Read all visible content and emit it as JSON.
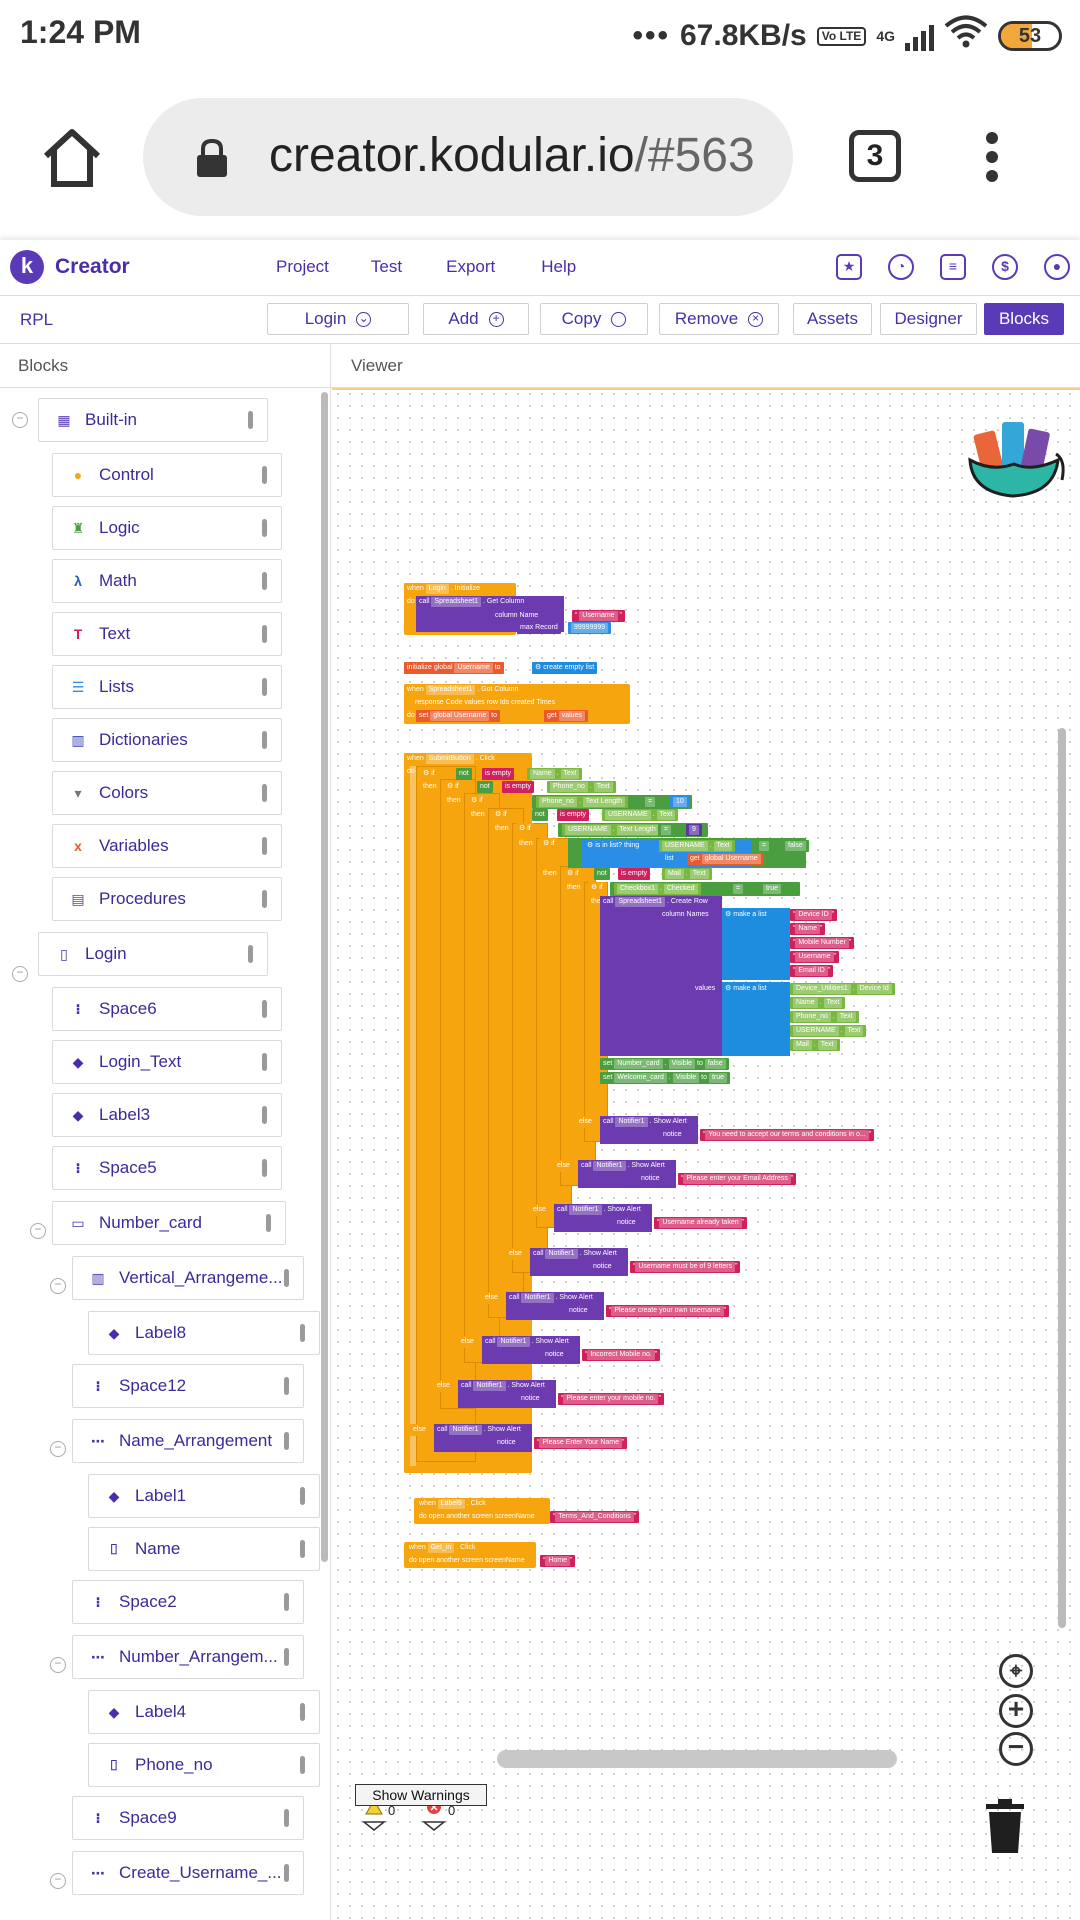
{
  "status_bar": {
    "time": "1:24 PM",
    "network_speed": "67.8KB/s",
    "volte": "Vo LTE",
    "net_type": "4G",
    "battery": "53",
    "battery_level": 0.53
  },
  "browser": {
    "url_host": "creator.kodular.io",
    "url_path": "/#563",
    "tab_count": "3"
  },
  "app": {
    "brand": "Creator",
    "logo_letter": "k",
    "menu": [
      "Project",
      "Test",
      "Export",
      "Help"
    ],
    "header_icons": [
      "folder-star-icon",
      "palette-icon",
      "catalog-icon",
      "dollar-icon",
      "account-icon"
    ]
  },
  "toolbar": {
    "project_name": "RPL",
    "buttons": {
      "screen": "Login",
      "add": "Add",
      "copy": "Copy",
      "remove": "Remove",
      "assets": "Assets",
      "designer": "Designer",
      "blocks": "Blocks"
    }
  },
  "panels": {
    "blocks_title": "Blocks",
    "viewer_title": "Viewer"
  },
  "tree": [
    {
      "label": "Built-in",
      "icon": "builtin-icon",
      "color": "#5b3ab8"
    },
    {
      "label": "Control",
      "icon": "control-icon",
      "color": "#f7a50e"
    },
    {
      "label": "Logic",
      "icon": "logic-icon",
      "color": "#4a9e3f"
    },
    {
      "label": "Math",
      "icon": "math-icon",
      "color": "#2a5bbf"
    },
    {
      "label": "Text",
      "icon": "text-icon",
      "color": "#d0215e"
    },
    {
      "label": "Lists",
      "icon": "lists-icon",
      "color": "#2a8ee6"
    },
    {
      "label": "Dictionaries",
      "icon": "dictionaries-icon",
      "color": "#2d3ab0"
    },
    {
      "label": "Colors",
      "icon": "colors-icon",
      "color": "#777777"
    },
    {
      "label": "Variables",
      "icon": "variables-icon",
      "color": "#ea5a2c"
    },
    {
      "label": "Procedures",
      "icon": "procedures-icon",
      "color": "#6c3bb0"
    },
    {
      "label": "Login",
      "icon": "phone-icon",
      "color": "#4a2ea8"
    },
    {
      "label": "Space6",
      "icon": "space-icon",
      "color": "#4a2ea8"
    },
    {
      "label": "Login_Text",
      "icon": "label-icon",
      "color": "#4a2ea8"
    },
    {
      "label": "Label3",
      "icon": "label-icon",
      "color": "#4a2ea8"
    },
    {
      "label": "Space5",
      "icon": "space-icon",
      "color": "#4a2ea8"
    },
    {
      "label": "Number_card",
      "icon": "card-icon",
      "color": "#4a2ea8"
    },
    {
      "label": "Vertical_Arrangeme...",
      "icon": "vertical-arrangement-icon",
      "color": "#4a2ea8"
    },
    {
      "label": "Label8",
      "icon": "label-icon",
      "color": "#4a2ea8"
    },
    {
      "label": "Space12",
      "icon": "space-icon",
      "color": "#4a2ea8"
    },
    {
      "label": "Name_Arrangement",
      "icon": "horizontal-arrangement-icon",
      "color": "#4a2ea8"
    },
    {
      "label": "Label1",
      "icon": "label-icon",
      "color": "#4a2ea8"
    },
    {
      "label": "Name",
      "icon": "textbox-icon",
      "color": "#4a2ea8"
    },
    {
      "label": "Space2",
      "icon": "space-icon",
      "color": "#4a2ea8"
    },
    {
      "label": "Number_Arrangem...",
      "icon": "horizontal-arrangement-icon",
      "color": "#4a2ea8"
    },
    {
      "label": "Label4",
      "icon": "label-icon",
      "color": "#4a2ea8"
    },
    {
      "label": "Phone_no",
      "icon": "textbox-icon",
      "color": "#4a2ea8"
    },
    {
      "label": "Space9",
      "icon": "space-icon",
      "color": "#4a2ea8"
    },
    {
      "label": "Create_Username_...",
      "icon": "horizontal-arrangement-icon",
      "color": "#4a2ea8"
    }
  ],
  "blocks": {
    "init_when": "when",
    "init_comp": "Login",
    "init_event": "Initialize",
    "do": "do",
    "call": "call",
    "sheet": "Spreadsheet1",
    "get_column": "Get Column",
    "column_name": "column Name",
    "max_record": "max Record",
    "username_str": "Username",
    "max_record_val": "99999999",
    "init_global": "initialize global",
    "global_name": "Username",
    "to": "to",
    "create_empty_list": "create empty list",
    "got_when": "when",
    "got_comp": "Spreadsheet1",
    "got_event": "Got Column",
    "got_params": "response Code   values   row Ids   created Times",
    "set": "set",
    "global_username": "global Username",
    "get": "get",
    "values": "values",
    "submit_when": "when",
    "submit_comp": "SubmitButton",
    "submit_event": "Click",
    "if": "if",
    "then": "then",
    "else": "else",
    "not": "not",
    "is_empty": "is empty",
    "name": "Name",
    "text": "Text",
    "phone_no": "Phone_no",
    "text_length": "Text Length",
    "eq": "=",
    "ten": "10",
    "nine": "9",
    "username_c": "USERNAME",
    "is_in_list": "is in list? thing",
    "list": "list",
    "false": "false",
    "true": "true",
    "mail": "Mail",
    "checkbox": "Checkbox1",
    "checked": "Checked",
    "create_row": "Create Row",
    "column_names": "column Names",
    "make_a_list": "make a list",
    "col_items": [
      "Device ID",
      "Name",
      "Mobile Number",
      "Username",
      "Email ID"
    ],
    "values_label": "values",
    "device_util": "Device_Utilities1",
    "device_id": "Device Id",
    "set_number_card": "Number_card",
    "visible": "Visible",
    "set_welcome_card": "Welcome_card",
    "notifier": "Notifier1",
    "show_alert": "Show Alert",
    "notice": "notice",
    "alerts": [
      "You need to accept our terms and conditions in o...",
      "Please enter your Email Address",
      "Username already taken",
      "Username must be of 9 letters",
      "Please create your own username",
      "Incorrect Mobile no.",
      "Please enter your mobile no.",
      "Please Enter Your Name"
    ],
    "label9_comp": "Label9",
    "click": "Click",
    "open_screen": "open another screen  screenName",
    "terms_screen": "Terms_And_Conditions",
    "getin_comp": "Get_in",
    "home_screen": "Home"
  },
  "warnings": {
    "warning_count": "0",
    "error_count": "0",
    "show_warnings": "Show Warnings"
  }
}
